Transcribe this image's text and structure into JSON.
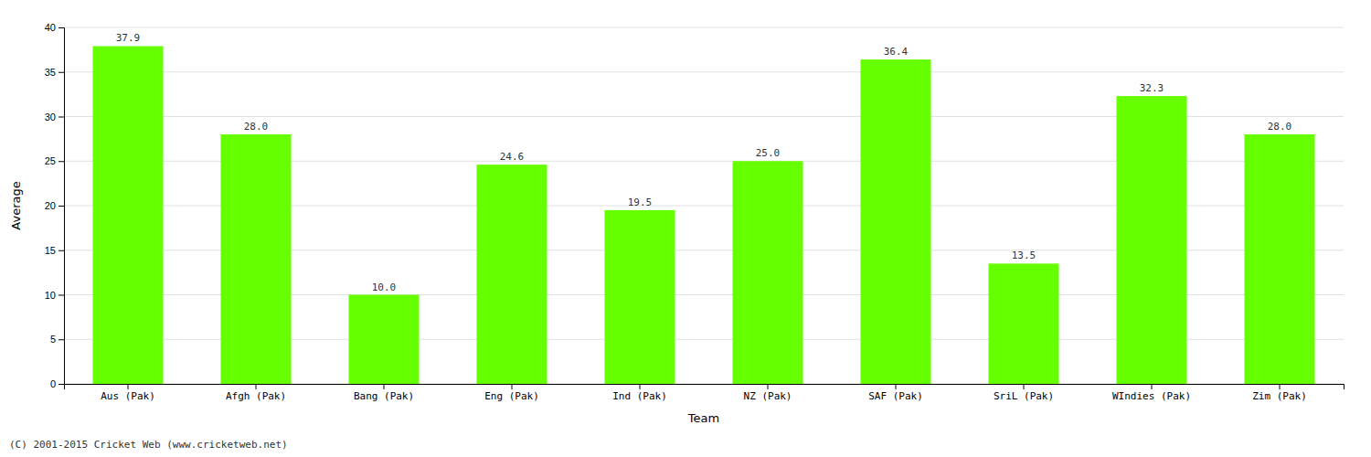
{
  "chart_data": {
    "type": "bar",
    "xlabel": "Team",
    "ylabel": "Average",
    "categories": [
      "Aus (Pak)",
      "Afgh (Pak)",
      "Bang (Pak)",
      "Eng (Pak)",
      "Ind (Pak)",
      "NZ (Pak)",
      "SAF (Pak)",
      "SriL (Pak)",
      "WIndies (Pak)",
      "Zim (Pak)"
    ],
    "values": [
      37.9,
      28.0,
      10.0,
      24.6,
      19.5,
      25.0,
      36.4,
      13.5,
      32.3,
      28.0
    ],
    "value_labels": [
      "37.9",
      "28.0",
      "10.0",
      "24.6",
      "19.5",
      "25.0",
      "36.4",
      "13.5",
      "32.3",
      "28.0"
    ],
    "color": "#66ff00",
    "ylim": [
      0,
      40
    ],
    "yticks": [
      0,
      5,
      10,
      15,
      20,
      25,
      30,
      35,
      40
    ],
    "grid": true,
    "data_labels": true,
    "annotations": [
      "(C) 2001-2015 Cricket Web (www.cricketweb.net)"
    ]
  }
}
